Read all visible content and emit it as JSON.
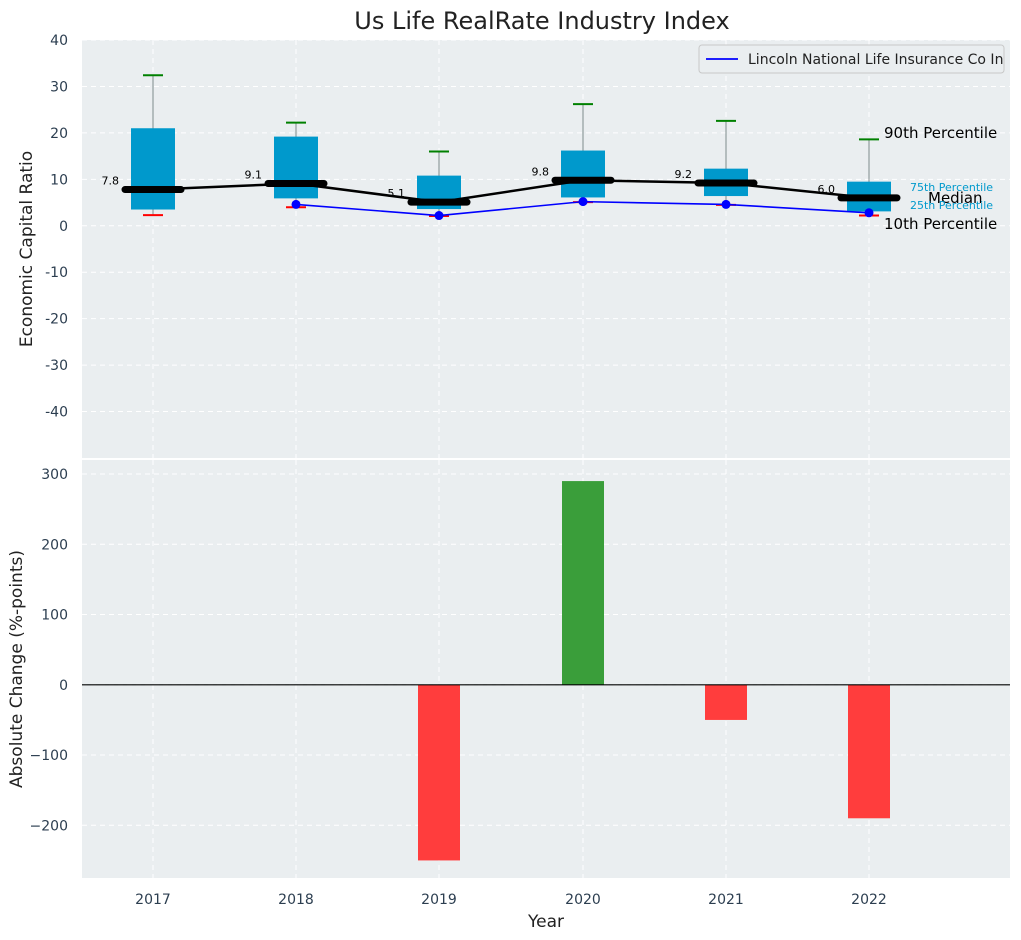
{
  "chart_data": [
    {
      "type": "box",
      "title": "Us Life RealRate Industry Index",
      "ylabel": "Economic Capital Ratio",
      "ylim": [
        -50,
        40
      ],
      "yticks": [
        -40,
        -30,
        -20,
        -10,
        0,
        10,
        20,
        30,
        40
      ],
      "categories": [
        "2017",
        "2018",
        "2019",
        "2020",
        "2021",
        "2022"
      ],
      "grid": true,
      "legend": {
        "placement": "top-right",
        "entries": [
          "Lincoln National Life Insurance Co In"
        ]
      },
      "box": {
        "p10": [
          2.3,
          4.0,
          2.1,
          5.1,
          4.5,
          2.2
        ],
        "p25": [
          3.5,
          5.9,
          3.6,
          6.1,
          6.4,
          3.1
        ],
        "median": [
          7.8,
          9.1,
          5.1,
          9.8,
          9.2,
          6.0
        ],
        "p75": [
          21.0,
          19.2,
          10.8,
          16.2,
          12.3,
          9.5
        ],
        "p90": [
          32.4,
          22.2,
          16.0,
          26.2,
          22.6,
          18.6
        ]
      },
      "median_labels": [
        "7.8",
        "9.1",
        "5.1",
        "9.8",
        "9.2",
        "6.0"
      ],
      "series": [
        {
          "name": "Lincoln National Life Insurance Co In",
          "x": [
            "2018",
            "2019",
            "2020",
            "2021",
            "2022"
          ],
          "values": [
            4.6,
            2.2,
            5.2,
            4.6,
            2.8
          ],
          "color": "#0000ff"
        }
      ],
      "annotations": {
        "p90": "90th Percentile",
        "p75": "75th Percentile",
        "median": "Median",
        "p25": "25th Percentile",
        "p10": "10th Percentile"
      },
      "colors": {
        "box": "#0099cc",
        "median": "#000000",
        "p90_cap": "#008000",
        "p10_cap": "#ff0000",
        "background": "#eaeef0"
      }
    },
    {
      "type": "bar",
      "ylabel": "Absolute Change (%-points)",
      "xlabel": "Year",
      "ylim": [
        -275,
        320
      ],
      "yticks": [
        -200,
        -100,
        0,
        100,
        200,
        300
      ],
      "ytick_labels": [
        "−200",
        "−100",
        "0",
        "100",
        "200",
        "300"
      ],
      "categories": [
        "2017",
        "2018",
        "2019",
        "2020",
        "2021",
        "2022"
      ],
      "values": [
        null,
        null,
        -250,
        290,
        -50,
        -190
      ],
      "grid": true,
      "colors": {
        "positive": "#3a9e3a",
        "negative": "#ff3d3d"
      }
    }
  ]
}
